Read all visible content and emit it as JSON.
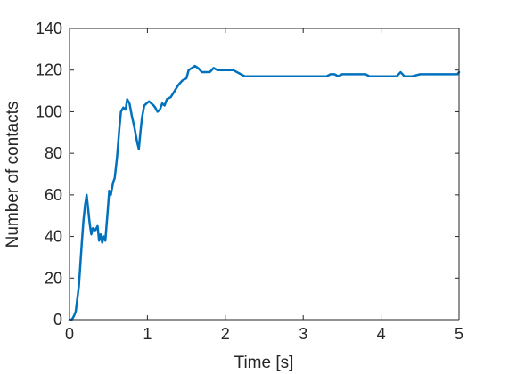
{
  "chart_data": {
    "type": "line",
    "title": "",
    "xlabel": "Time [s]",
    "ylabel": "Number of contacts",
    "xlim": [
      0,
      5
    ],
    "ylim": [
      0,
      140
    ],
    "xticks": [
      0,
      1,
      2,
      3,
      4,
      5
    ],
    "yticks": [
      0,
      20,
      40,
      60,
      80,
      100,
      120,
      140
    ],
    "grid": false,
    "legend": "none",
    "colors": {
      "line": "#0072BD",
      "axis": "#262626"
    },
    "series": [
      {
        "values": [
          [
            0.0,
            0
          ],
          [
            0.03,
            0
          ],
          [
            0.06,
            2
          ],
          [
            0.08,
            4
          ],
          [
            0.1,
            10
          ],
          [
            0.12,
            16
          ],
          [
            0.14,
            27
          ],
          [
            0.16,
            38
          ],
          [
            0.18,
            48
          ],
          [
            0.2,
            55
          ],
          [
            0.22,
            60
          ],
          [
            0.24,
            53
          ],
          [
            0.26,
            46
          ],
          [
            0.28,
            41
          ],
          [
            0.3,
            44
          ],
          [
            0.33,
            43
          ],
          [
            0.36,
            45
          ],
          [
            0.38,
            38
          ],
          [
            0.4,
            41
          ],
          [
            0.42,
            37
          ],
          [
            0.44,
            40
          ],
          [
            0.46,
            38
          ],
          [
            0.49,
            52
          ],
          [
            0.51,
            62
          ],
          [
            0.53,
            60
          ],
          [
            0.56,
            66
          ],
          [
            0.58,
            68
          ],
          [
            0.61,
            78
          ],
          [
            0.64,
            92
          ],
          [
            0.66,
            100
          ],
          [
            0.69,
            102
          ],
          [
            0.72,
            101
          ],
          [
            0.74,
            106
          ],
          [
            0.77,
            104
          ],
          [
            0.8,
            98
          ],
          [
            0.83,
            93
          ],
          [
            0.85,
            89
          ],
          [
            0.87,
            85
          ],
          [
            0.89,
            82
          ],
          [
            0.91,
            90
          ],
          [
            0.93,
            97
          ],
          [
            0.96,
            103
          ],
          [
            0.99,
            104
          ],
          [
            1.02,
            105
          ],
          [
            1.05,
            104
          ],
          [
            1.08,
            103
          ],
          [
            1.1,
            102
          ],
          [
            1.13,
            100
          ],
          [
            1.16,
            101
          ],
          [
            1.19,
            104
          ],
          [
            1.22,
            103
          ],
          [
            1.25,
            106
          ],
          [
            1.3,
            107
          ],
          [
            1.35,
            110
          ],
          [
            1.4,
            113
          ],
          [
            1.45,
            115
          ],
          [
            1.5,
            116
          ],
          [
            1.53,
            120
          ],
          [
            1.57,
            121
          ],
          [
            1.61,
            122
          ],
          [
            1.65,
            121
          ],
          [
            1.7,
            119
          ],
          [
            1.8,
            119
          ],
          [
            1.85,
            121
          ],
          [
            1.9,
            120
          ],
          [
            2.0,
            120
          ],
          [
            2.1,
            120
          ],
          [
            2.15,
            119
          ],
          [
            2.2,
            118
          ],
          [
            2.25,
            117
          ],
          [
            2.3,
            117
          ],
          [
            2.5,
            117
          ],
          [
            3.0,
            117
          ],
          [
            3.3,
            117
          ],
          [
            3.35,
            118
          ],
          [
            3.4,
            118
          ],
          [
            3.45,
            117
          ],
          [
            3.5,
            118
          ],
          [
            3.6,
            118
          ],
          [
            3.7,
            118
          ],
          [
            3.8,
            118
          ],
          [
            3.85,
            117
          ],
          [
            4.0,
            117
          ],
          [
            4.15,
            117
          ],
          [
            4.2,
            117
          ],
          [
            4.25,
            119
          ],
          [
            4.3,
            117
          ],
          [
            4.4,
            117
          ],
          [
            4.5,
            118
          ],
          [
            4.7,
            118
          ],
          [
            4.9,
            118
          ],
          [
            4.98,
            118
          ],
          [
            5.0,
            119
          ]
        ]
      }
    ]
  }
}
